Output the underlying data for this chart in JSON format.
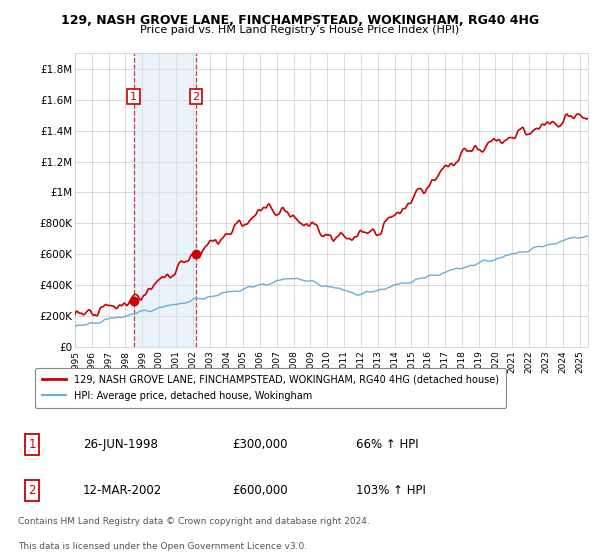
{
  "title": "129, NASH GROVE LANE, FINCHAMPSTEAD, WOKINGHAM, RG40 4HG",
  "subtitle": "Price paid vs. HM Land Registry’s House Price Index (HPI)",
  "ylabel_ticks": [
    "£0",
    "£200K",
    "£400K",
    "£600K",
    "£800K",
    "£1M",
    "£1.2M",
    "£1.4M",
    "£1.6M",
    "£1.8M"
  ],
  "ytick_values": [
    0,
    200000,
    400000,
    600000,
    800000,
    1000000,
    1200000,
    1400000,
    1600000,
    1800000
  ],
  "ylim": [
    0,
    1900000
  ],
  "xlim_start": 1995.0,
  "xlim_end": 2025.5,
  "purchase1_x": 1998.48,
  "purchase1_y": 300000,
  "purchase1_label": "1",
  "purchase1_date": "26-JUN-1998",
  "purchase1_price": "£300,000",
  "purchase1_hpi": "66% ↑ HPI",
  "purchase2_x": 2002.19,
  "purchase2_y": 600000,
  "purchase2_label": "2",
  "purchase2_date": "12-MAR-2002",
  "purchase2_price": "£600,000",
  "purchase2_hpi": "103% ↑ HPI",
  "shade_x1": 1998.48,
  "shade_x2": 2002.19,
  "line_color_red": "#cc0000",
  "line_color_blue": "#6baed6",
  "shade_color": "#d6e8f7",
  "grid_color": "#cccccc",
  "bg_color": "#ffffff",
  "legend_line1": "129, NASH GROVE LANE, FINCHAMPSTEAD, WOKINGHAM, RG40 4HG (detached house)",
  "legend_line2": "HPI: Average price, detached house, Wokingham",
  "footer1": "Contains HM Land Registry data © Crown copyright and database right 2024.",
  "footer2": "This data is licensed under the Open Government Licence v3.0.",
  "xtick_years": [
    1995,
    1996,
    1997,
    1998,
    1999,
    2000,
    2001,
    2002,
    2003,
    2004,
    2005,
    2006,
    2007,
    2008,
    2009,
    2010,
    2011,
    2012,
    2013,
    2014,
    2015,
    2016,
    2017,
    2018,
    2019,
    2020,
    2021,
    2022,
    2023,
    2024,
    2025
  ]
}
